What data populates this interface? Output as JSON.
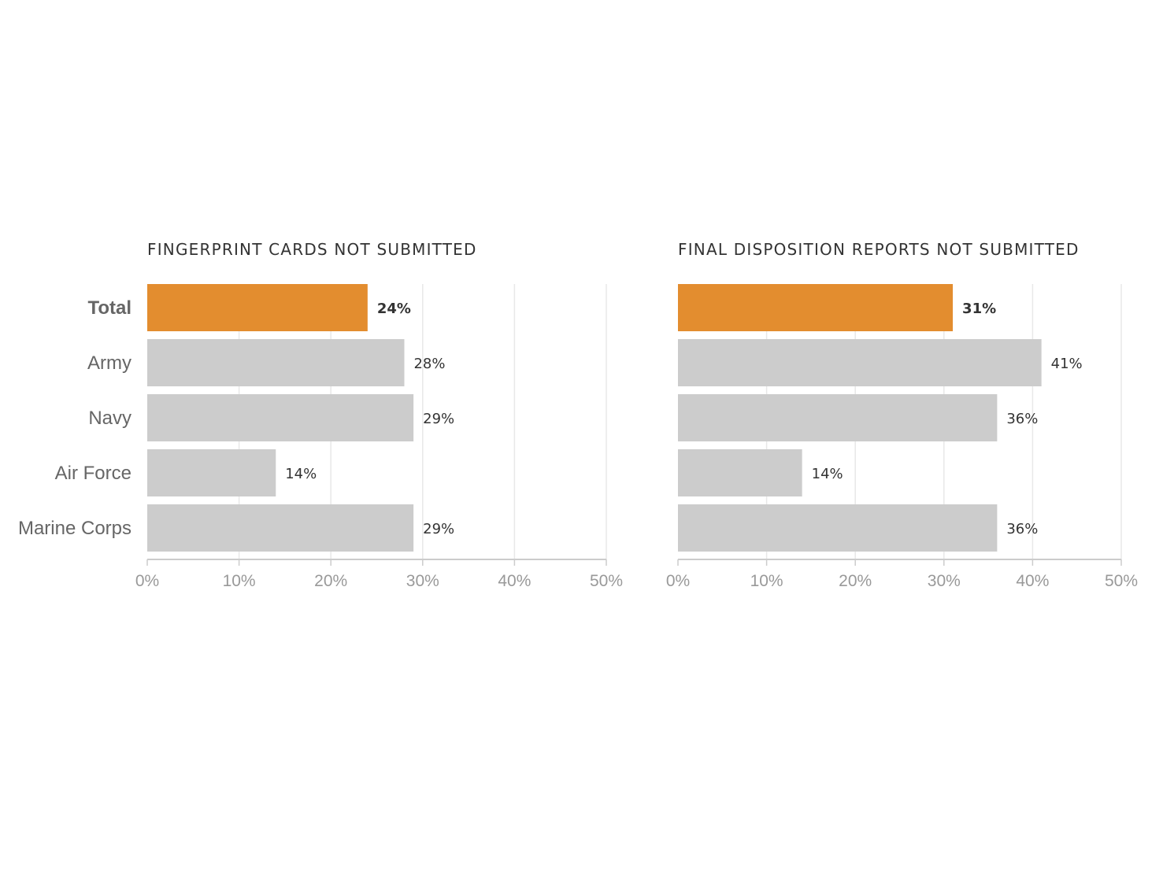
{
  "chart_data": [
    {
      "type": "bar",
      "orientation": "horizontal",
      "title": "FINGERPRINT CARDS NOT SUBMITTED",
      "categories": [
        "Total",
        "Army",
        "Navy",
        "Air Force",
        "Marine Corps"
      ],
      "values": [
        24,
        28,
        29,
        14,
        29
      ],
      "value_labels": [
        "24%",
        "28%",
        "29%",
        "14%",
        "29%"
      ],
      "highlight_index": 0,
      "xlim": [
        0,
        50
      ],
      "xticks": [
        0,
        10,
        20,
        30,
        40,
        50
      ],
      "xtick_labels": [
        "0%",
        "10%",
        "20%",
        "30%",
        "40%",
        "50%"
      ],
      "grid": true,
      "xlabel": "",
      "ylabel": ""
    },
    {
      "type": "bar",
      "orientation": "horizontal",
      "title": "FINAL DISPOSITION REPORTS NOT SUBMITTED",
      "categories": [
        "Total",
        "Army",
        "Navy",
        "Air Force",
        "Marine Corps"
      ],
      "values": [
        31,
        41,
        36,
        14,
        36
      ],
      "value_labels": [
        "31%",
        "41%",
        "36%",
        "14%",
        "36%"
      ],
      "highlight_index": 0,
      "xlim": [
        0,
        50
      ],
      "xticks": [
        0,
        10,
        20,
        30,
        40,
        50
      ],
      "xtick_labels": [
        "0%",
        "10%",
        "20%",
        "30%",
        "40%",
        "50%"
      ],
      "grid": true,
      "xlabel": "",
      "ylabel": ""
    }
  ],
  "colors": {
    "highlight_bar": "#e38d2f",
    "bar": "#cccccc",
    "grid": "#e8e8e8",
    "axis": "#cccccc"
  }
}
